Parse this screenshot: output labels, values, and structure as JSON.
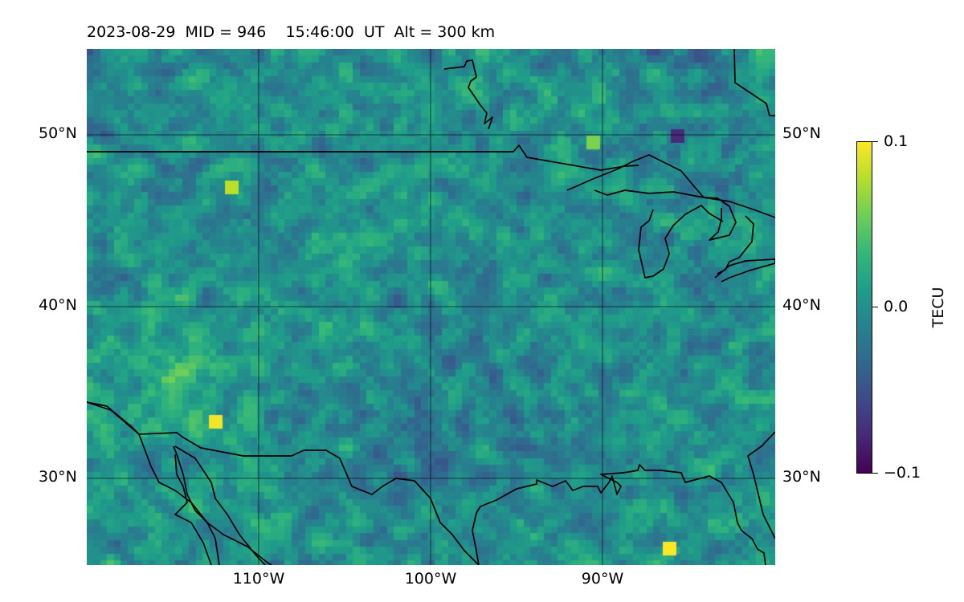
{
  "header": {
    "title": "2023-08-29  MID = 946    15:46:00  UT  Alt = 300 km"
  },
  "map": {
    "projection": "plate-carree",
    "lon_range": [
      -120,
      -80
    ],
    "lat_range": [
      25,
      55
    ],
    "gridlines": true,
    "field": "TEC perturbation",
    "lat_ticks": [
      {
        "value": 50,
        "label": "50°N"
      },
      {
        "value": 40,
        "label": "40°N"
      },
      {
        "value": 30,
        "label": "30°N"
      }
    ],
    "lon_ticks": [
      {
        "value": -110,
        "label": "110°W"
      },
      {
        "value": -100,
        "label": "100°W"
      },
      {
        "value": -90,
        "label": "90°W"
      }
    ]
  },
  "colorbar": {
    "label": "TECU",
    "min": -0.1,
    "max": 0.1,
    "colormap": "viridis",
    "ticks": [
      {
        "value": 0.1,
        "label": "0.1"
      },
      {
        "value": 0.0,
        "label": "0.0"
      },
      {
        "value": -0.1,
        "label": "−0.1"
      }
    ]
  }
}
